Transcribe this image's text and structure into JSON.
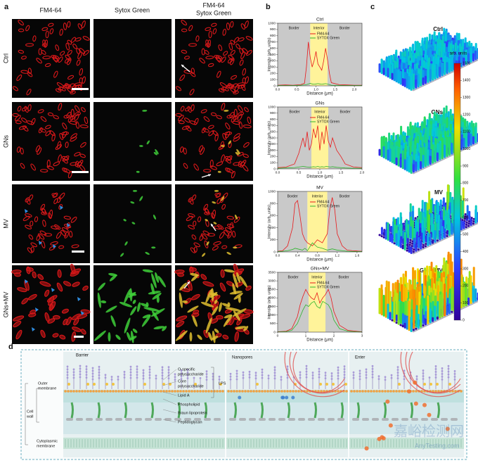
{
  "panel_labels": [
    "a",
    "b",
    "c",
    "d"
  ],
  "panel_a": {
    "columns": [
      "FM4-64",
      "Sytox Green"
    ],
    "merge_column": [
      "FM4-64",
      "Sytox Green"
    ],
    "rows": [
      "Ctrl",
      "GNs",
      "MV",
      "GNs+MV"
    ]
  },
  "chart_data": [
    {
      "type": "line",
      "title": "Ctrl",
      "xlabel": "Distance (μm)",
      "ylabel": "Intensity (arb. units)",
      "regions": [
        {
          "label": "Border",
          "x": [
            0,
            0.85
          ],
          "color": "#c9c9c9"
        },
        {
          "label": "Interior",
          "x": [
            0.85,
            1.3
          ],
          "color": "#fff39a"
        },
        {
          "label": "Border",
          "x": [
            1.3,
            2.2
          ],
          "color": "#c9c9c9"
        }
      ],
      "x": [
        0,
        0.2,
        0.4,
        0.6,
        0.7,
        0.75,
        0.8,
        0.85,
        0.9,
        0.95,
        1.0,
        1.05,
        1.1,
        1.15,
        1.2,
        1.25,
        1.3,
        1.35,
        1.4,
        1.6,
        1.8,
        2.0,
        2.2
      ],
      "series": [
        {
          "name": "FM4-64",
          "color": "#e8191b",
          "values": [
            10,
            15,
            10,
            20,
            40,
            300,
            700,
            450,
            300,
            400,
            550,
            350,
            300,
            250,
            400,
            600,
            420,
            200,
            50,
            20,
            15,
            10,
            10
          ]
        },
        {
          "name": "SYTOX Green",
          "color": "#2db52d",
          "values": [
            5,
            5,
            5,
            10,
            15,
            20,
            30,
            40,
            30,
            25,
            30,
            35,
            30,
            25,
            30,
            35,
            30,
            20,
            10,
            8,
            5,
            5,
            5
          ]
        }
      ],
      "xlim": [
        0,
        2.2
      ],
      "ylim": [
        0,
        1000
      ],
      "xticks": [
        {
          "value": 0,
          "label": "0.0"
        },
        {
          "value": 0.5,
          "label": "0.5"
        },
        {
          "value": 1,
          "label": "1.0"
        },
        {
          "value": 1.5,
          "label": "1.5"
        },
        {
          "value": 2,
          "label": "2.0"
        }
      ],
      "yticks": [
        0,
        100,
        200,
        300,
        400,
        500,
        600,
        700,
        800,
        900,
        1000
      ]
    },
    {
      "type": "line",
      "title": "GNs",
      "xlabel": "Distance (μm)",
      "ylabel": "Intensity (arb. units)",
      "regions": [
        {
          "label": "Border",
          "x": [
            0,
            0.8
          ],
          "color": "#c9c9c9"
        },
        {
          "label": "Interior",
          "x": [
            0.8,
            1.2
          ],
          "color": "#fff39a"
        },
        {
          "label": "Border",
          "x": [
            1.2,
            2.0
          ],
          "color": "#c9c9c9"
        }
      ],
      "x": [
        0,
        0.2,
        0.4,
        0.5,
        0.6,
        0.65,
        0.7,
        0.75,
        0.8,
        0.85,
        0.9,
        0.95,
        1.0,
        1.05,
        1.1,
        1.15,
        1.2,
        1.25,
        1.3,
        1.4,
        1.5,
        1.6,
        1.8,
        2.0
      ],
      "series": [
        {
          "name": "FM4-64",
          "color": "#e8191b",
          "values": [
            20,
            30,
            80,
            250,
            500,
            350,
            600,
            300,
            400,
            650,
            500,
            700,
            300,
            600,
            400,
            700,
            450,
            350,
            500,
            300,
            200,
            80,
            30,
            20
          ]
        },
        {
          "name": "SYTOX Green",
          "color": "#2db52d",
          "values": [
            10,
            15,
            20,
            30,
            40,
            35,
            30,
            25,
            30,
            35,
            30,
            40,
            30,
            35,
            30,
            40,
            35,
            30,
            35,
            25,
            20,
            15,
            10,
            10
          ]
        }
      ],
      "xlim": [
        0,
        2.0
      ],
      "ylim": [
        0,
        1000
      ],
      "xticks": [
        {
          "value": 0,
          "label": "0.0"
        },
        {
          "value": 0.5,
          "label": "0.5"
        },
        {
          "value": 1,
          "label": "1.0"
        },
        {
          "value": 1.5,
          "label": "1.5"
        },
        {
          "value": 2,
          "label": "2.0"
        }
      ],
      "yticks": [
        0,
        100,
        200,
        300,
        400,
        500,
        600,
        700,
        800,
        900,
        1000
      ]
    },
    {
      "type": "line",
      "title": "MV",
      "xlabel": "Distance (μm)",
      "ylabel": "Intensity (arb. units)",
      "regions": [
        {
          "label": "Border",
          "x": [
            0,
            0.6
          ],
          "color": "#c9c9c9"
        },
        {
          "label": "Interior",
          "x": [
            0.6,
            1.0
          ],
          "color": "#fff39a"
        },
        {
          "label": "Border",
          "x": [
            1.0,
            1.7
          ],
          "color": "#c9c9c9"
        }
      ],
      "x": [
        0,
        0.1,
        0.2,
        0.3,
        0.35,
        0.4,
        0.45,
        0.5,
        0.55,
        0.6,
        0.7,
        0.8,
        0.9,
        1.0,
        1.05,
        1.1,
        1.15,
        1.2,
        1.3,
        1.4,
        1.5,
        1.6,
        1.7
      ],
      "series": [
        {
          "name": "FM4-64",
          "color": "#e8191b",
          "values": [
            10,
            20,
            100,
            400,
            800,
            850,
            600,
            300,
            200,
            150,
            100,
            200,
            150,
            300,
            700,
            900,
            700,
            300,
            100,
            30,
            20,
            15,
            10
          ]
        },
        {
          "name": "SYTOX Green",
          "color": "#2db52d",
          "values": [
            5,
            10,
            20,
            40,
            60,
            50,
            40,
            30,
            60,
            20,
            150,
            80,
            60,
            30,
            40,
            50,
            40,
            30,
            20,
            10,
            8,
            5,
            5
          ]
        }
      ],
      "xlim": [
        0,
        1.7
      ],
      "ylim": [
        0,
        1000
      ],
      "xticks": [
        {
          "value": 0,
          "label": "0.0"
        },
        {
          "value": 0.4,
          "label": "0.4"
        },
        {
          "value": 0.8,
          "label": "0.8"
        },
        {
          "value": 1.2,
          "label": "1.2"
        },
        {
          "value": 1.6,
          "label": "1.6"
        }
      ],
      "yticks": [
        0,
        200,
        400,
        600,
        800,
        1000
      ]
    },
    {
      "type": "line",
      "title": "GNs+MV",
      "xlabel": "Distance (μm)",
      "ylabel": "Intensity (arb. units)",
      "regions": [
        {
          "label": "Border",
          "x": [
            0,
            1.1
          ],
          "color": "#c9c9c9"
        },
        {
          "label": "Interior",
          "x": [
            1.1,
            1.7
          ],
          "color": "#fff39a"
        },
        {
          "label": "Border",
          "x": [
            1.7,
            3.0
          ],
          "color": "#c9c9c9"
        }
      ],
      "x": [
        0,
        0.3,
        0.5,
        0.7,
        0.8,
        0.9,
        1.0,
        1.1,
        1.2,
        1.3,
        1.4,
        1.5,
        1.6,
        1.7,
        1.8,
        1.9,
        2.0,
        2.2,
        2.5,
        2.8,
        3.0
      ],
      "series": [
        {
          "name": "FM4-64",
          "color": "#e8191b",
          "values": [
            20,
            50,
            200,
            900,
            1600,
            2100,
            2500,
            2200,
            2000,
            1900,
            2300,
            1700,
            2000,
            2200,
            2500,
            2000,
            1200,
            400,
            100,
            50,
            20
          ]
        },
        {
          "name": "SYTOX Green",
          "color": "#2db52d",
          "values": [
            10,
            30,
            100,
            500,
            900,
            1300,
            1600,
            1500,
            1700,
            1800,
            1500,
            1400,
            1800,
            1700,
            1600,
            1300,
            700,
            200,
            50,
            20,
            10
          ]
        }
      ],
      "xlim": [
        0,
        3
      ],
      "ylim": [
        0,
        3500
      ],
      "xticks": [
        0,
        1,
        2,
        3
      ],
      "yticks": [
        0,
        500,
        1000,
        1500,
        2000,
        2500,
        3000,
        3500
      ]
    }
  ],
  "panel_c": {
    "titles": [
      "Ctrl",
      "GNs",
      "MV",
      "GNs+MV"
    ],
    "colorbar": {
      "label": "arb. units",
      "range": [
        0,
        1500
      ],
      "ticks": [
        0,
        100,
        200,
        300,
        400,
        500,
        600,
        700,
        800,
        900,
        1000,
        1100,
        1200,
        1300,
        1400,
        1500
      ]
    }
  },
  "panel_d": {
    "stages": [
      "Barrier",
      "Nanopores",
      "Enter"
    ],
    "left_labels": {
      "outer_membrane": [
        "Outer",
        "membrane"
      ],
      "cell_wall": [
        "Cell",
        "wall"
      ],
      "cytoplasmic_membrane": [
        "Cytoplasmic",
        "membrane"
      ]
    },
    "right_labels": {
      "o_specific": [
        "O-specific",
        "polysaccharide"
      ],
      "core": [
        "Core",
        "polysaccharide"
      ],
      "lps": "LPS",
      "lipid_a": "Lipid A",
      "phospholipid": "Phospholipid",
      "braun": "Braun lipoprotein",
      "peptidoglycan": "Peptidoglycan"
    },
    "watermark": [
      "嘉峪检测网",
      "AnyTesting.com"
    ]
  }
}
